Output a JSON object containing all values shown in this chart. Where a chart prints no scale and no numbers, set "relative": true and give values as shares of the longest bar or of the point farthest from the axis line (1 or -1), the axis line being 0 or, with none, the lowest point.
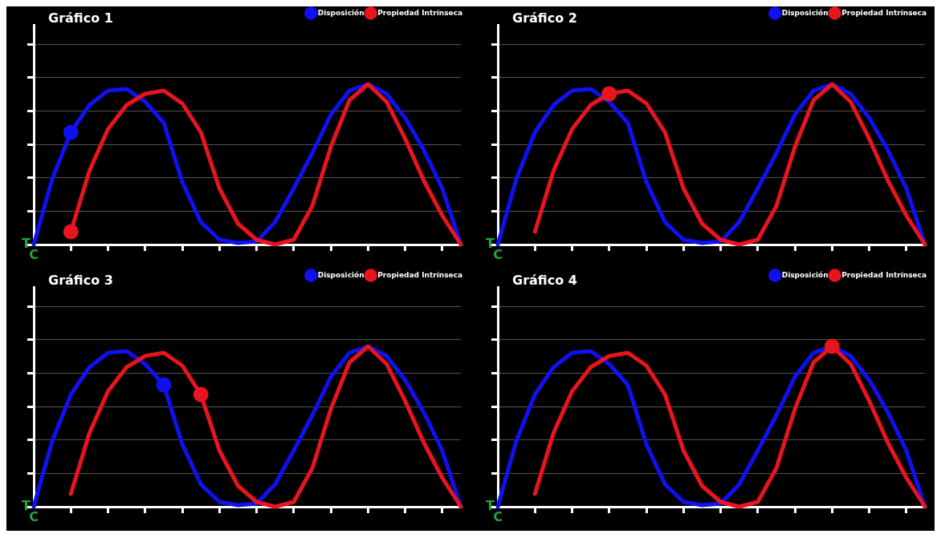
{
  "chart_data": [
    {
      "type": "line",
      "title": "Gráfico 1",
      "relative": true,
      "grid": "y",
      "legend": "top right",
      "marker": "none",
      "annotations": [
        "T",
        "C"
      ],
      "categories": [
        null,
        null,
        null,
        null,
        null,
        null,
        null,
        null,
        null,
        null,
        null,
        null,
        null,
        null,
        null,
        null,
        null,
        null,
        null,
        null,
        null,
        null,
        null,
        null
      ],
      "series": [
        {
          "name": "Disposición",
          "color": "#1010f0",
          "values": [
            0,
            0.41,
            0.7,
            0.87,
            0.96,
            0.97,
            0.89,
            0.76,
            0.39,
            0.14,
            0.03,
            0.01,
            0.02,
            0.14,
            0.35,
            0.57,
            0.81,
            0.96,
            1,
            0.94,
            0.79,
            0.59,
            0.35,
            0
          ]
        },
        {
          "name": "Propiedad Intrínseca",
          "color": "#e8141e",
          "values": [
            null,
            null,
            0.08,
            0.46,
            0.72,
            0.87,
            0.94,
            0.96,
            0.88,
            0.7,
            0.35,
            0.13,
            0.03,
            0,
            0.03,
            0.24,
            0.61,
            0.9,
            1,
            0.89,
            0.66,
            0.4,
            0.18,
            0
          ]
        },
        {
          "type": "line",
          "marker": "circle",
          "color": "#1010f0",
          "values": [
            null,
            null,
            0.7,
            null,
            null,
            null,
            null,
            null,
            null,
            null,
            null,
            null,
            null,
            null,
            null,
            null,
            null,
            null,
            null,
            null,
            null,
            null,
            null,
            null
          ]
        },
        {
          "type": "line",
          "marker": "circle",
          "color": "#e8141e",
          "values": [
            null,
            null,
            0.08,
            null,
            null,
            null,
            null,
            null,
            null,
            null,
            null,
            null,
            null,
            null,
            null,
            null,
            null,
            null,
            null,
            null,
            null,
            null,
            null,
            null
          ]
        }
      ]
    },
    {
      "type": "line",
      "title": "Gráfico 2",
      "relative": true,
      "grid": "y",
      "legend": "top right",
      "marker": "none",
      "annotations": [
        "T",
        "C"
      ],
      "categories": [
        null,
        null,
        null,
        null,
        null,
        null,
        null,
        null,
        null,
        null,
        null,
        null,
        null,
        null,
        null,
        null,
        null,
        null,
        null,
        null,
        null,
        null,
        null,
        null
      ],
      "series": [
        {
          "name": "Disposición",
          "color": "#1010f0",
          "values": [
            0,
            0.41,
            0.7,
            0.87,
            0.96,
            0.97,
            0.89,
            0.76,
            0.39,
            0.14,
            0.03,
            0.01,
            0.02,
            0.14,
            0.35,
            0.57,
            0.81,
            0.96,
            1,
            0.94,
            0.79,
            0.59,
            0.35,
            0
          ]
        },
        {
          "name": "Propiedad Intrínseca",
          "color": "#e8141e",
          "values": [
            null,
            null,
            0.08,
            0.46,
            0.72,
            0.87,
            0.94,
            0.96,
            0.88,
            0.7,
            0.35,
            0.13,
            0.03,
            0,
            0.03,
            0.24,
            0.61,
            0.9,
            1,
            0.89,
            0.66,
            0.4,
            0.18,
            0
          ]
        },
        {
          "type": "line",
          "marker": "circle",
          "color": "#e8141e",
          "values": [
            null,
            null,
            null,
            null,
            null,
            null,
            0.94,
            null,
            null,
            null,
            null,
            null,
            null,
            null,
            null,
            null,
            null,
            null,
            null,
            null,
            null,
            null,
            null,
            null
          ]
        }
      ]
    },
    {
      "type": "line",
      "title": "Gráfico 3",
      "relative": true,
      "grid": "y",
      "legend": "top right",
      "marker": "none",
      "annotations": [
        "T",
        "C"
      ],
      "categories": [
        null,
        null,
        null,
        null,
        null,
        null,
        null,
        null,
        null,
        null,
        null,
        null,
        null,
        null,
        null,
        null,
        null,
        null,
        null,
        null,
        null,
        null,
        null,
        null
      ],
      "series": [
        {
          "name": "Disposición",
          "color": "#1010f0",
          "values": [
            0,
            0.41,
            0.7,
            0.87,
            0.96,
            0.97,
            0.89,
            0.76,
            0.39,
            0.14,
            0.03,
            0.01,
            0.02,
            0.14,
            0.35,
            0.57,
            0.81,
            0.96,
            1,
            0.94,
            0.79,
            0.59,
            0.35,
            0
          ]
        },
        {
          "name": "Propiedad Intrínseca",
          "color": "#e8141e",
          "values": [
            null,
            null,
            0.08,
            0.46,
            0.72,
            0.87,
            0.94,
            0.96,
            0.88,
            0.7,
            0.35,
            0.13,
            0.03,
            0,
            0.03,
            0.24,
            0.61,
            0.9,
            1,
            0.89,
            0.66,
            0.4,
            0.18,
            0
          ]
        },
        {
          "type": "line",
          "marker": "circle",
          "color": "#1010f0",
          "values": [
            null,
            null,
            null,
            null,
            null,
            null,
            null,
            0.76,
            null,
            null,
            null,
            null,
            null,
            null,
            null,
            null,
            null,
            null,
            null,
            null,
            null,
            null,
            null,
            null
          ]
        },
        {
          "type": "line",
          "marker": "circle",
          "color": "#e8141e",
          "values": [
            null,
            null,
            null,
            null,
            null,
            null,
            null,
            null,
            null,
            0.7,
            null,
            null,
            null,
            null,
            null,
            null,
            null,
            null,
            null,
            null,
            null,
            null,
            null,
            null
          ]
        }
      ]
    },
    {
      "type": "line",
      "title": "Gráfico 4",
      "relative": true,
      "grid": "y",
      "legend": "top right",
      "marker": "none",
      "annotations": [
        "T",
        "C"
      ],
      "categories": [
        null,
        null,
        null,
        null,
        null,
        null,
        null,
        null,
        null,
        null,
        null,
        null,
        null,
        null,
        null,
        null,
        null,
        null,
        null,
        null,
        null,
        null,
        null,
        null
      ],
      "series": [
        {
          "name": "Disposición",
          "color": "#1010f0",
          "values": [
            0,
            0.41,
            0.7,
            0.87,
            0.96,
            0.97,
            0.89,
            0.76,
            0.39,
            0.14,
            0.03,
            0.01,
            0.02,
            0.14,
            0.35,
            0.57,
            0.81,
            0.96,
            1,
            0.94,
            0.79,
            0.59,
            0.35,
            0
          ]
        },
        {
          "name": "Propiedad Intrínseca",
          "color": "#e8141e",
          "values": [
            null,
            null,
            0.08,
            0.46,
            0.72,
            0.87,
            0.94,
            0.96,
            0.88,
            0.7,
            0.35,
            0.13,
            0.03,
            0,
            0.03,
            0.24,
            0.61,
            0.9,
            1,
            0.89,
            0.66,
            0.4,
            0.18,
            0
          ]
        },
        {
          "type": "line",
          "marker": "circle",
          "color": "#e8141e",
          "values": [
            null,
            null,
            null,
            null,
            null,
            null,
            null,
            null,
            null,
            null,
            null,
            null,
            null,
            null,
            null,
            null,
            null,
            null,
            1,
            null,
            null,
            null,
            null,
            null
          ]
        }
      ]
    }
  ]
}
